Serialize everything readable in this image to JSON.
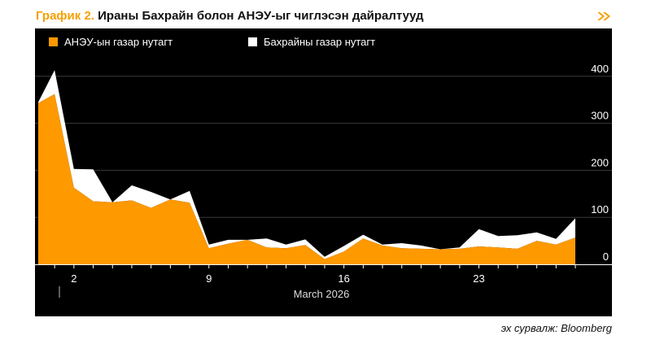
{
  "header": {
    "title_prefix": "График 2.",
    "title_rest": " Ираны Бахрайн болон АНЭУ-ыг чиглэсэн дайралтууд",
    "arrow_icon": "double-chevron-right-icon",
    "accent_color": "#f5a000"
  },
  "source": "эх сурвалж: Bloomberg",
  "chart_data": {
    "type": "area",
    "stacked": true,
    "title": "",
    "xlabel": "March 2026",
    "ylabel": "",
    "x_ticks": [
      "2",
      "9",
      "16",
      "23"
    ],
    "x_tick_values": [
      2,
      9,
      16,
      23
    ],
    "y_ticks": [
      "0",
      "100",
      "200",
      "300",
      "400"
    ],
    "ylim": [
      0,
      420
    ],
    "x": [
      0.15,
      1,
      2,
      3,
      4,
      5,
      6,
      7,
      8,
      9,
      10,
      11,
      12,
      13,
      14,
      15,
      16,
      17,
      18,
      19,
      20,
      21,
      22,
      23,
      24,
      25,
      26,
      27,
      28
    ],
    "legend_position": "top-left",
    "series": [
      {
        "name": "АНЭУ-ын газар нутагт",
        "color": "#ff9900",
        "values": [
          343,
          362,
          163,
          134,
          132,
          136,
          120,
          138,
          131,
          34,
          44,
          52,
          36,
          34,
          41,
          11,
          27,
          55,
          40,
          34,
          33,
          32,
          33,
          38,
          36,
          33,
          50,
          42,
          57
        ]
      },
      {
        "name": "Бахрайны газар нутагт",
        "color": "#ffffff",
        "values": [
          2,
          51,
          40,
          68,
          0,
          32,
          34,
          0,
          25,
          8,
          8,
          0,
          19,
          8,
          12,
          5,
          12,
          8,
          2,
          11,
          7,
          0,
          3,
          37,
          24,
          29,
          18,
          12,
          41
        ]
      }
    ]
  }
}
